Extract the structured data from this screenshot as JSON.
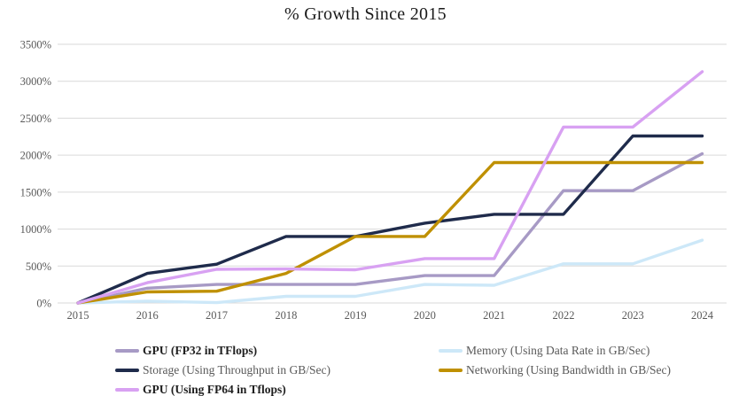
{
  "chart_data": {
    "type": "line",
    "title": "% Growth Since 2015",
    "x": [
      "2015",
      "2016",
      "2017",
      "2018",
      "2019",
      "2020",
      "2021",
      "2022",
      "2023",
      "2024"
    ],
    "ylim": [
      0,
      3500
    ],
    "ytick_values": [
      0,
      500,
      1000,
      1500,
      2000,
      2500,
      3000,
      3500
    ],
    "ytick_labels": [
      "0%",
      "500%",
      "1000%",
      "1500%",
      "2000%",
      "2500%",
      "3000%",
      "3500%"
    ],
    "grid": "horizontal",
    "grid_color": "#d9d9d9",
    "tick_label_color": "#595959",
    "title_color": "#1a1a1a",
    "legend_position": "bottom-two-columns",
    "series": [
      {
        "name": "GPU (FP32 in TFlops)",
        "color": "#a79ac5",
        "bold_legend": true,
        "values": [
          0,
          200,
          250,
          250,
          250,
          370,
          370,
          1520,
          1520,
          2020
        ]
      },
      {
        "name": "Memory (Using Data Rate in GB/Sec)",
        "color": "#cde8f8",
        "bold_legend": false,
        "values": [
          0,
          25,
          5,
          90,
          90,
          250,
          240,
          530,
          530,
          850
        ]
      },
      {
        "name": "Storage (Using Throughput in GB/Sec)",
        "color": "#1f2b4b",
        "bold_legend": false,
        "values": [
          0,
          400,
          525,
          900,
          900,
          1080,
          1200,
          1200,
          2260,
          2260
        ]
      },
      {
        "name": "Networking (Using Bandwidth in GB/Sec)",
        "color": "#bf9000",
        "bold_legend": false,
        "values": [
          0,
          150,
          160,
          400,
          900,
          900,
          1900,
          1900,
          1900,
          1900
        ]
      },
      {
        "name": "GPU (Using FP64 in Tflops)",
        "color": "#d8a1f2",
        "bold_legend": true,
        "values": [
          0,
          275,
          455,
          460,
          450,
          600,
          600,
          2380,
          2380,
          3130
        ]
      }
    ],
    "legend": {
      "left_column_indices": [
        0,
        2,
        4
      ],
      "right_column_indices": [
        1,
        3
      ]
    }
  }
}
